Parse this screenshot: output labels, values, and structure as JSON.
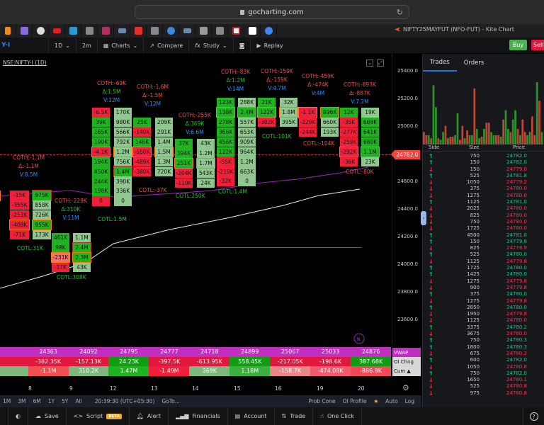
{
  "browser": {
    "url": "gocharting.com",
    "window_title": "NIFTY25MAYFUT (NFO-FUT) - Kite Chart"
  },
  "bookmarks": [
    "orange-bars",
    "purple-square",
    "circle-dark",
    "youtube",
    "ci",
    "g-grey",
    "multi",
    "vehicle",
    "red-tag",
    "g-grey2",
    "n-blue",
    "vehicle2",
    "w",
    "c",
    "red-square",
    "check",
    "google"
  ],
  "toolbar": {
    "symbol": "Y-I",
    "interval": "1D",
    "timeframe": "2m",
    "charts": "Charts",
    "compare": "Compare",
    "study": "Study",
    "replay": "Replay",
    "buy": "Buy",
    "sell": "Sell"
  },
  "chart": {
    "symbol_label": "NSE:NIFTY-I (1D)",
    "current_price": "24782.0",
    "y_ticks": [
      "25400.0",
      "25200.0",
      "25000.0",
      "24600.0",
      "24400.0",
      "24200.0",
      "24000.0",
      "23800.0",
      "23600.0"
    ],
    "x_labels": [
      "8",
      "9",
      "12",
      "13",
      "14",
      "15",
      "16",
      "19",
      "20"
    ],
    "annotations": [
      {
        "id": "a0",
        "coth": "COTH:-1.1M",
        "delta": "Δ:-1.1M",
        "vol": "V:8.5M",
        "sign": "n"
      },
      {
        "id": "a1",
        "coth": "COTH:-229K",
        "delta": "Δ:310K",
        "vol": "V:11M",
        "sign": "p"
      },
      {
        "id": "a2",
        "coth": "COTH:-69K",
        "delta": "Δ:1.5M",
        "vol": "V:12M",
        "sign": "p"
      },
      {
        "id": "a3",
        "coth": "COTH:-1.6M",
        "delta": "Δ:-1.5M",
        "vol": "V:12M",
        "sign": "n"
      },
      {
        "id": "a4",
        "coth": "COTH:-255K",
        "delta": "Δ:369K",
        "vol": "V:6.6M",
        "sign": "p"
      },
      {
        "id": "a5",
        "coth": "COTH:-83K",
        "delta": "Δ:1.2M",
        "vol": "V:14M",
        "sign": "p"
      },
      {
        "id": "a6",
        "coth": "COTH:-159K",
        "delta": "Δ:-159K",
        "vol": "V:4.7M",
        "sign": "n"
      },
      {
        "id": "a7",
        "coth": "COTH:-459K",
        "delta": "Δ:-474K",
        "vol": "V:4M",
        "sign": "n"
      },
      {
        "id": "a8",
        "coth": "COTH:-893K",
        "delta": "Δ:-887K",
        "vol": "V:7.2M",
        "sign": "n"
      }
    ],
    "cotl": [
      "COTL:31K",
      "COTL:308K",
      "COTL:1.5M",
      "COTL:-37K",
      "COTL:250K",
      "COTL:1.4M",
      "COTL:101K",
      "COTL:-104K",
      "COTL:-80K"
    ],
    "footprints": {
      "c0_left": [
        "4K",
        "1M",
        "6M",
        "8K"
      ],
      "c0_a": [
        "-15K",
        "-355K",
        "-251K",
        "-408K",
        "-71K"
      ],
      "c0_b": [
        "975K",
        "858K",
        "726K",
        "955K",
        "173K"
      ],
      "c1_a": [
        "461K",
        "98K",
        "-231K",
        "-17K"
      ],
      "c1_b": [
        "1.1M",
        "2.4M",
        "2.3M",
        "43K"
      ],
      "c2_a": [
        "-6.5K",
        "39K",
        "165K",
        "190K",
        "-4.1K",
        "194K",
        "450K",
        "244K",
        "198K",
        "0"
      ],
      "c2_b": [
        "170K",
        "980K",
        "566K",
        "792K",
        "1.2M",
        "756K",
        "1.4M",
        "390K",
        "336K",
        "0"
      ],
      "c3_a": [
        "25K",
        "-140K",
        "146K",
        "-650K",
        "-489K",
        "-380K"
      ],
      "c3_b": [
        "209K",
        "291K",
        "1.4M",
        "1.5M",
        "1.3M",
        "720K"
      ],
      "c4_a": [
        "37K",
        "394K",
        "251K",
        "-204K",
        "-110K"
      ],
      "c4_b": [
        "43K",
        "1.2M",
        "1.7M",
        "543K",
        "24K"
      ],
      "c5_a": [
        "123K",
        "138K",
        "278K",
        "366K",
        "456K",
        "122K",
        "-55K",
        "-219K",
        "-32K"
      ],
      "c5_b": [
        "288K",
        "2.4M",
        "557K",
        "653K",
        "909K",
        "964K",
        "1.2M",
        "663K",
        "0"
      ],
      "c6_a": [
        "21K",
        "122K",
        "-302K"
      ],
      "c6_b": [
        "32K",
        "1.8M",
        "395K"
      ],
      "c7_a": [
        "-1.1K",
        "-229K",
        "-244K"
      ],
      "c7_b": [
        "896K",
        "660K",
        "193K"
      ],
      "c8_a": [
        "12K",
        "-35K",
        "-277K",
        "-259K",
        "-292K",
        "-36K"
      ],
      "c8_b": [
        "19K",
        "669K",
        "641K",
        "680K",
        "1.1M",
        "23K"
      ]
    },
    "bottom_table": {
      "vwap": [
        "24363",
        "24092",
        "24795",
        "24777",
        "24718",
        "24899",
        "25067",
        "25033",
        "24876"
      ],
      "oi_chng": [
        "-382.35K",
        "-157.13K",
        "24.23K",
        "-397.5K",
        "-613.95K",
        "558.45K",
        "-217.05K",
        "-198.6K",
        "387.68K"
      ],
      "cum": [
        "-1.1M",
        "310.2K",
        "1.47M",
        "-1.49M",
        "369K",
        "1.18M",
        "-158.7K",
        "-474.08K",
        "-886.8K"
      ],
      "legend": [
        "VWAP",
        "OI Chng",
        "Cum ▲"
      ]
    }
  },
  "range_bar": {
    "ranges": [
      "1M",
      "3M",
      "6M",
      "1Y",
      "5Y",
      "All"
    ],
    "time": "20:39:30 (UTC+05:30)",
    "goto": "GoTo...",
    "prob_cone": "Prob Cone",
    "oi_profile": "OI Profile",
    "auto": "Auto",
    "log": "Log"
  },
  "footer": {
    "save": "Save",
    "script": "Script",
    "beta": "BETA",
    "alert": "Alert",
    "financials": "Financials",
    "account": "Account",
    "trade": "Trade",
    "one_click": "One Click"
  },
  "panel": {
    "tabs": [
      "Trades",
      "Orders"
    ],
    "headers": {
      "side": "Side",
      "size": "Size",
      "price": "Price"
    },
    "trades": [
      {
        "side": "up",
        "size": "750",
        "price": "24782.0"
      },
      {
        "side": "up",
        "size": "150",
        "price": "24782.0"
      },
      {
        "side": "dn",
        "size": "150",
        "price": "24779.0"
      },
      {
        "side": "up",
        "size": "525",
        "price": "24781.8"
      },
      {
        "side": "dn",
        "size": "1050",
        "price": "24779.2"
      },
      {
        "side": "dn",
        "size": "375",
        "price": "24780.0"
      },
      {
        "side": "dn",
        "size": "1275",
        "price": "24780.0"
      },
      {
        "side": "up",
        "size": "1125",
        "price": "24781.0"
      },
      {
        "side": "dn",
        "size": "2025",
        "price": "24780.0"
      },
      {
        "side": "dn",
        "size": "825",
        "price": "24780.0"
      },
      {
        "side": "dn",
        "size": "750",
        "price": "24780.0"
      },
      {
        "side": "dn",
        "size": "1725",
        "price": "24780.0"
      },
      {
        "side": "up",
        "size": "4500",
        "price": "24781.0"
      },
      {
        "side": "up",
        "size": "150",
        "price": "24779.8"
      },
      {
        "side": "dn",
        "size": "825",
        "price": "24778.9"
      },
      {
        "side": "up",
        "size": "525",
        "price": "24780.0"
      },
      {
        "side": "dn",
        "size": "1125",
        "price": "24779.8"
      },
      {
        "side": "up",
        "size": "1725",
        "price": "24780.0"
      },
      {
        "side": "up",
        "size": "1425",
        "price": "24780.0"
      },
      {
        "side": "dn",
        "size": "1275",
        "price": "24779.8"
      },
      {
        "side": "dn",
        "size": "900",
        "price": "24779.8"
      },
      {
        "side": "up",
        "size": "375",
        "price": "24780.0"
      },
      {
        "side": "dn",
        "size": "1275",
        "price": "24779.8"
      },
      {
        "side": "up",
        "size": "2850",
        "price": "24780.0"
      },
      {
        "side": "dn",
        "size": "1950",
        "price": "24779.8"
      },
      {
        "side": "dn",
        "size": "1125",
        "price": "24780.0"
      },
      {
        "side": "up",
        "size": "3375",
        "price": "24780.2"
      },
      {
        "side": "dn",
        "size": "3675",
        "price": "24780.0"
      },
      {
        "side": "up",
        "size": "750",
        "price": "24780.3"
      },
      {
        "side": "up",
        "size": "1800",
        "price": "24780.3"
      },
      {
        "side": "dn",
        "size": "675",
        "price": "24780.2"
      },
      {
        "side": "up",
        "size": "600",
        "price": "24782.0"
      },
      {
        "side": "dn",
        "size": "1050",
        "price": "24780.8"
      },
      {
        "side": "up",
        "size": "750",
        "price": "24782.0"
      },
      {
        "side": "dn",
        "size": "1650",
        "price": "24780.1"
      },
      {
        "side": "dn",
        "size": "525",
        "price": "24780.8"
      },
      {
        "side": "dn",
        "size": "975",
        "price": "24780.8"
      }
    ]
  }
}
